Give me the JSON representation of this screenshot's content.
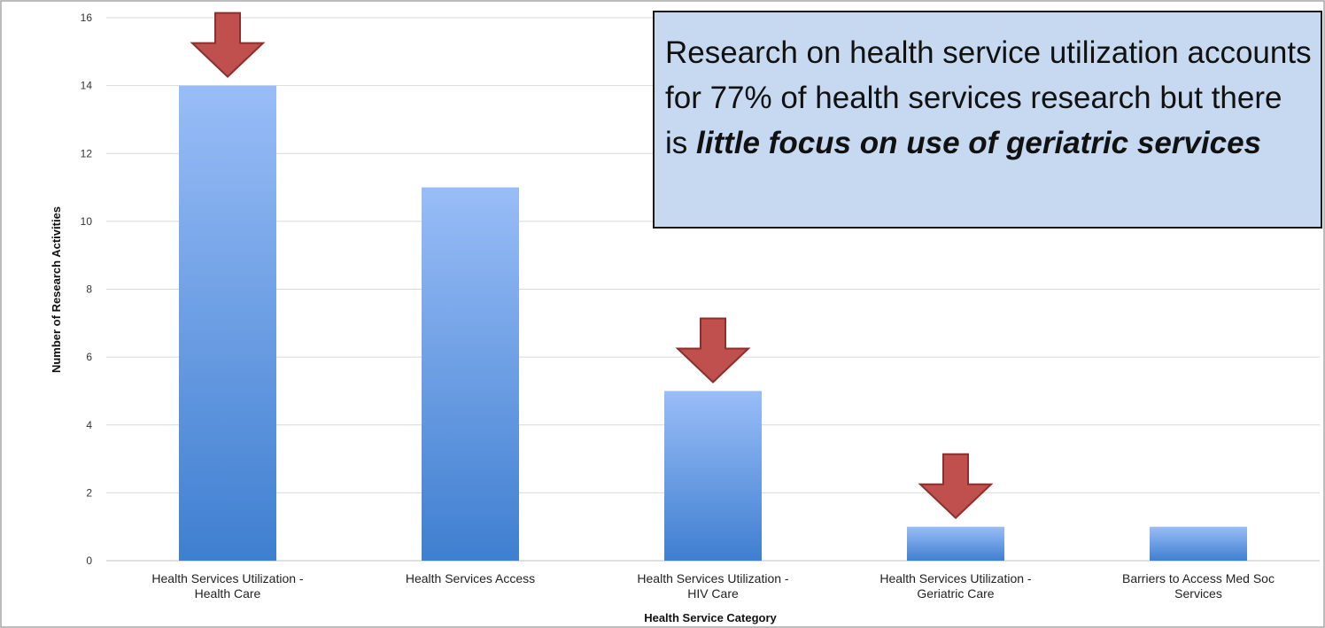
{
  "chart_data": {
    "type": "bar",
    "categories": [
      [
        "Health Services Utilization -",
        "Health Care"
      ],
      [
        "Health Services Access"
      ],
      [
        "Health Services Utilization -",
        "HIV Care"
      ],
      [
        "Health Services Utilization -",
        "Geriatric Care"
      ],
      [
        "Barriers to Access Med Soc",
        "Services"
      ]
    ],
    "values": [
      14,
      11,
      5,
      1,
      1
    ],
    "highlighted": [
      true,
      false,
      true,
      true,
      false
    ],
    "title": "",
    "xlabel": "Health Service Category",
    "ylabel": "Number of Research Activities",
    "ylim": [
      0,
      16
    ],
    "yticks": [
      0,
      2,
      4,
      6,
      8,
      10,
      12,
      14,
      16
    ],
    "grid": true,
    "legend": "none",
    "colors": {
      "bar_top": "#99bdf7",
      "bar_bottom": "#3f7fd0",
      "arrow_fill": "#c0504d",
      "arrow_stroke": "#8c2f2d",
      "grid": "#d9d9d9",
      "callout_bg": "#c6d9f1"
    }
  },
  "callout": {
    "text_before": "Research on health service utilization accounts for 77% of health services research but there is ",
    "text_emphasis": "little focus on use of geriatric services"
  }
}
